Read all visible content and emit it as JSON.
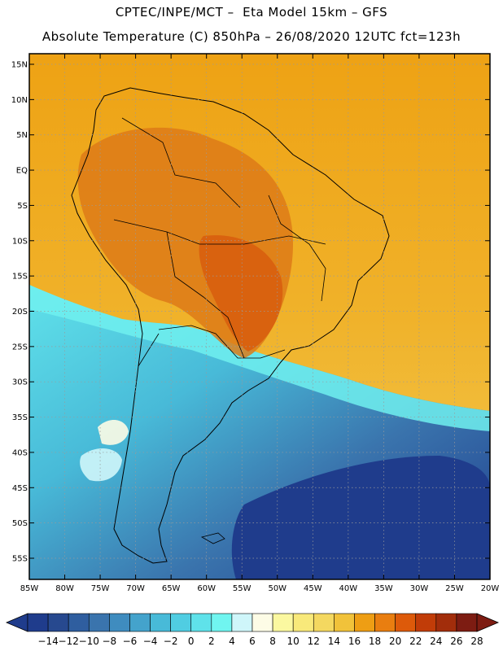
{
  "header": {
    "line1": "CPTEC/INPE/MCT –  Eta Model 15km – GFS",
    "line2": "Absolute Temperature (C) 850hPa – 26/08/2020 12UTC fct=123h"
  },
  "map": {
    "lat_labels": [
      "15N",
      "10N",
      "5N",
      "EQ",
      "5S",
      "10S",
      "15S",
      "20S",
      "25S",
      "30S",
      "35S",
      "40S",
      "45S",
      "50S",
      "55S"
    ],
    "lon_labels": [
      "85W",
      "80W",
      "75W",
      "70W",
      "65W",
      "60W",
      "55W",
      "50W",
      "45W",
      "40W",
      "35W",
      "30W",
      "25W",
      "20W"
    ],
    "lat_range": [
      -58,
      16.5
    ],
    "lon_range": [
      -85,
      -20
    ]
  },
  "colorbar": {
    "labels": [
      "-14",
      "-12",
      "-10",
      "-8",
      "-6",
      "-4",
      "-2",
      "0",
      "2",
      "4",
      "6",
      "8",
      "10",
      "12",
      "14",
      "16",
      "18",
      "20",
      "22",
      "24",
      "26",
      "28"
    ],
    "colors": [
      "#1f3c8c",
      "#27498f",
      "#2f5e9f",
      "#3a74ad",
      "#3f8cbf",
      "#44a3cc",
      "#48bad8",
      "#50cde2",
      "#5fe2ea",
      "#70f5f0",
      "#cff6fa",
      "#fdfce6",
      "#fbf8a0",
      "#f8e97a",
      "#f4d860",
      "#f1c23a",
      "#ee9e14",
      "#e97e10",
      "#dd5a0a",
      "#c13c08",
      "#a22d0b",
      "#7d1c12"
    ],
    "low_color": "#1f3c8c",
    "high_color": "#7d1c12"
  }
}
